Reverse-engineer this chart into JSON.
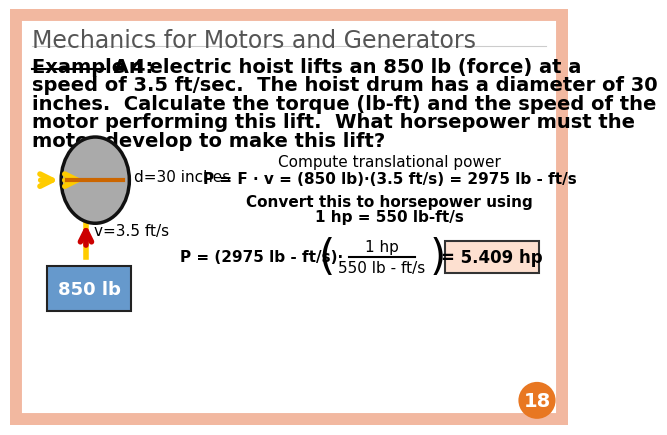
{
  "title": "Mechanics for Motors and Generators",
  "example_label": "Example 4:",
  "example_line1": " An electric hoist lifts an 850 lb (force) at a",
  "example_line2": "speed of 3.5 ft/sec.  The hoist drum has a diameter of 30",
  "example_line3": "inches.  Calculate the torque (lb-ft) and the speed of the",
  "example_line4": "motor performing this lift.  What horsepower must the",
  "example_line5": "motor develop to make this lift?",
  "compute_label": "Compute translational power",
  "eq1": "P = F · v = (850 lb)·(3.5 ft/s) = 2975 lb - ft/s",
  "convert_line1": "Convert this to horsepower using",
  "convert_line2": "1 hp = 550 lb-ft/s",
  "eq2_left": "P = (2975 lb - ft/s)·",
  "eq2_frac_num": "1 hp",
  "eq2_frac_den": "550 lb - ft/s",
  "eq2_right": "= 5.409 hp",
  "d_label": "d=30 inches",
  "v_label": "v=3.5 ft/s",
  "weight_label": "850 lb",
  "page_num": "18",
  "bg_color": "#ffffff",
  "border_color": "#f2b8a0",
  "title_color": "#555555",
  "text_color": "#000000",
  "drum_fill": "#aaaaaa",
  "drum_edge": "#111111",
  "arrow_color": "#ffcc00",
  "rope_color": "#cc6600",
  "lift_arrow_color": "#cc0000",
  "weight_fill": "#6699cc",
  "weight_text_color": "#ffffff",
  "result_box_fill": "#fde0d0",
  "result_box_edge": "#333333",
  "page_circle_color": "#e87722"
}
